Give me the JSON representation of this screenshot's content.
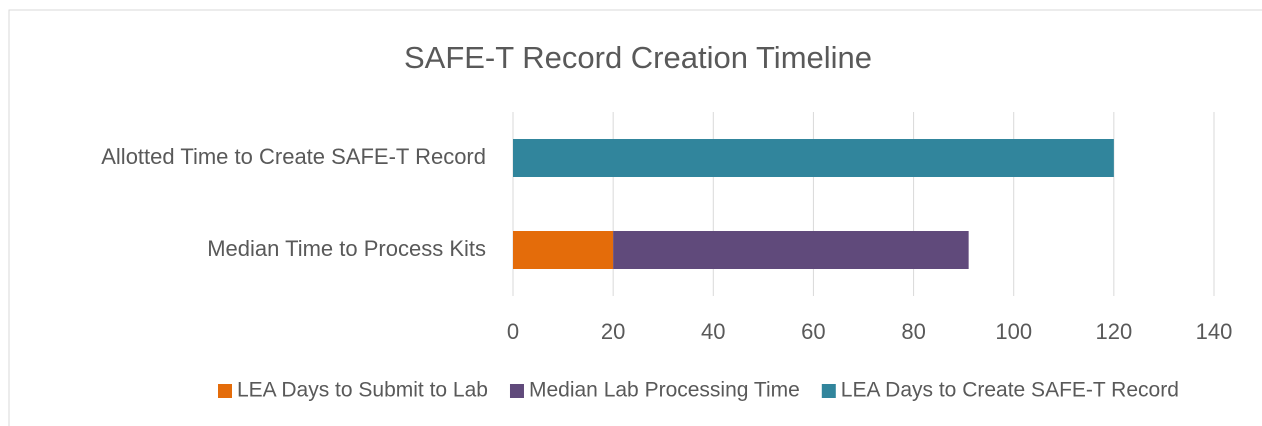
{
  "chart_data": {
    "type": "stacked-bar-horizontal",
    "title": "SAFE-T Record Creation Timeline",
    "categories": [
      "Allotted Time to Create SAFE-T Record",
      "Median Time to Process Kits"
    ],
    "series": [
      {
        "name": "LEA Days to Submit to Lab",
        "color": "#e46c0a",
        "values": [
          null,
          20
        ]
      },
      {
        "name": "Median Lab Processing Time",
        "color": "#604a7b",
        "values": [
          null,
          71
        ]
      },
      {
        "name": "LEA Days to Create SAFE-T Record",
        "color": "#31859c",
        "values": [
          120,
          null
        ]
      }
    ],
    "xlim": [
      0,
      140
    ],
    "xticks": [
      0,
      20,
      40,
      60,
      80,
      100,
      120,
      140
    ],
    "grid": true,
    "legend": "bottom"
  }
}
